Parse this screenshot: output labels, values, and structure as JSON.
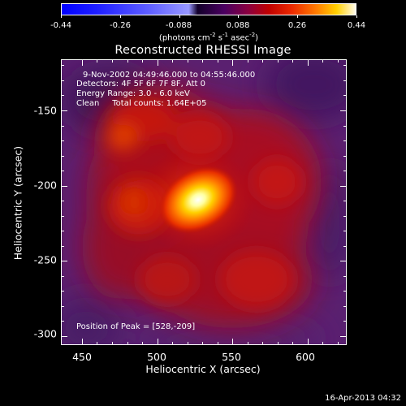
{
  "colorbar": {
    "ticks": [
      "-0.44",
      "-0.26",
      "-0.088",
      "0.088",
      "0.26",
      "0.44"
    ],
    "units_prefix": "(photons cm",
    "units_sup1": "-2",
    "units_mid1": " s",
    "units_sup2": "-1",
    "units_mid2": " asec",
    "units_sup3": "-2",
    "units_suffix": ")",
    "gradient_colors": [
      "#0000ff",
      "#1a1aff",
      "#4b4bff",
      "#8a8aff",
      "#1a0033",
      "#3b0060",
      "#7a0050",
      "#b80000",
      "#e82000",
      "#ff6a00",
      "#ffc000",
      "#ffff90",
      "#ffffff"
    ]
  },
  "title": "Reconstructed RHESSI Image",
  "annotations": {
    "time": "9-Nov-2002 04:49:46.000 to 04:55:46.000",
    "detectors": "Detectors: 4F 5F 6F 7F 8F, Att 0",
    "energy": "Energy Range: 3.0 - 6.0 keV",
    "clean": "Clean     Total counts: 1.64E+05",
    "peak": "Position of Peak = [528,-209]"
  },
  "axes": {
    "xlabel": "Heliocentric X (arcsec)",
    "ylabel": "Heliocentric Y (arcsec)",
    "x_ticks": [
      "450",
      "500",
      "550",
      "600"
    ],
    "y_ticks": [
      "-150",
      "-200",
      "-250",
      "-300"
    ],
    "x_range": [
      436,
      626
    ],
    "y_range": [
      -306,
      -116
    ]
  },
  "footer": {
    "date": "16-Apr-2013 04:32"
  },
  "colors": {
    "background": "#000000",
    "frame": "#ffffff",
    "image_bg": "#5a2070"
  }
}
